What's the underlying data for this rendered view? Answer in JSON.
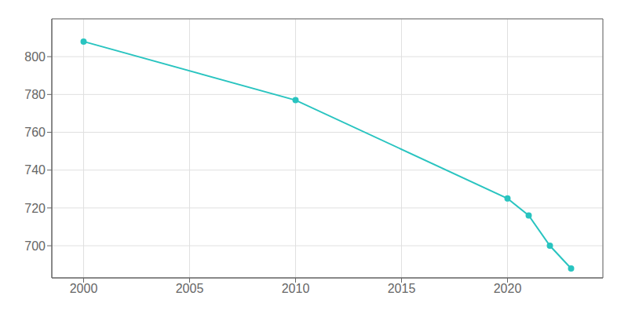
{
  "chart_data": {
    "type": "line",
    "x": [
      2000,
      2010,
      2020,
      2021,
      2022,
      2023
    ],
    "values": [
      808,
      777,
      725,
      716,
      700,
      688
    ],
    "color": "#29C4C0",
    "marker": "circle",
    "xlim": [
      1998.5,
      2024.5
    ],
    "ylim": [
      683,
      820
    ],
    "xticks": [
      2000,
      2005,
      2010,
      2015,
      2020
    ],
    "yticks": [
      700,
      720,
      740,
      760,
      780,
      800
    ],
    "grid": true
  }
}
